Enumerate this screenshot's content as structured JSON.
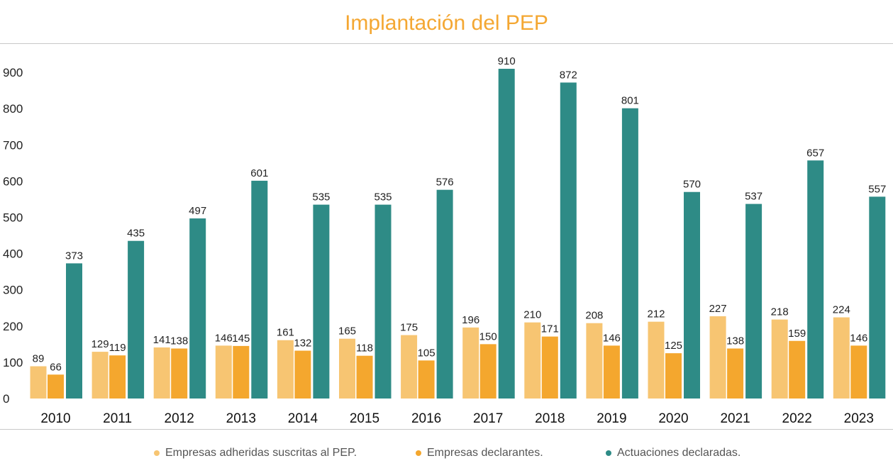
{
  "chart_data": {
    "type": "bar",
    "title": "Implantación del PEP",
    "categories": [
      "2010",
      "2011",
      "2012",
      "2013",
      "2014",
      "2015",
      "2016",
      "2017",
      "2018",
      "2019",
      "2020",
      "2021",
      "2022",
      "2023"
    ],
    "series": [
      {
        "name": "Empresas adheridas suscritas al PEP.",
        "color": "#f7c572",
        "values": [
          89,
          129,
          141,
          146,
          161,
          165,
          175,
          196,
          210,
          208,
          212,
          227,
          218,
          224
        ]
      },
      {
        "name": "Empresas declarantes.",
        "color": "#f4a72e",
        "values": [
          66,
          119,
          138,
          145,
          132,
          118,
          105,
          150,
          171,
          146,
          125,
          138,
          159,
          146
        ]
      },
      {
        "name": "Actuaciones declaradas.",
        "color": "#2e8b86",
        "values": [
          373,
          435,
          497,
          601,
          535,
          535,
          576,
          910,
          872,
          801,
          570,
          537,
          657,
          557
        ]
      }
    ],
    "yticks": [
      0,
      100,
      200,
      300,
      400,
      500,
      600,
      700,
      800,
      900
    ],
    "ylim": [
      0,
      940
    ],
    "xlabel": "",
    "ylabel": "",
    "grid": false,
    "legend_position": "bottom"
  }
}
